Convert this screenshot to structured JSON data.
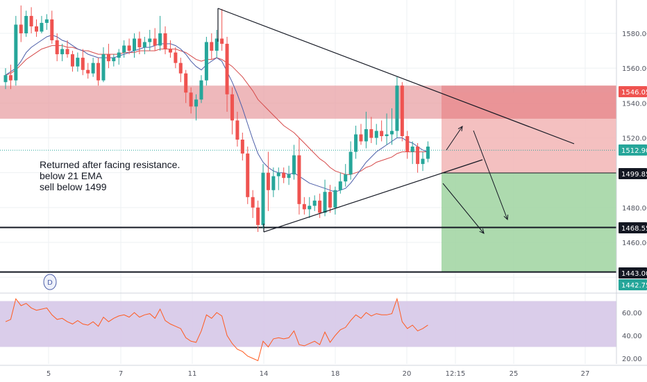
{
  "chart_data": [
    {
      "type": "candlestick",
      "ylim": [
        1440,
        1600
      ],
      "grid": true,
      "price_ticks": [
        "1580.00",
        "1560.00",
        "1540.00",
        "1520.00",
        "1480.00",
        "1460.00"
      ],
      "x_ticks": [
        "5",
        "7",
        "11",
        "14",
        "18",
        "20",
        "12:15",
        "25",
        "27"
      ],
      "price_tags": [
        {
          "label": "1546.05",
          "value": 1546.05,
          "color": "#ef5350"
        },
        {
          "label": "1512.90",
          "value": 1512.9,
          "color": "#26a69a"
        },
        {
          "label": "1499.85",
          "value": 1499.85,
          "color": "#131722"
        },
        {
          "label": "1468.55",
          "value": 1468.55,
          "color": "#131722"
        },
        {
          "label": "1443.00",
          "value": 1443.0,
          "color": "#131722"
        },
        {
          "label": "1442.75",
          "value": 1442.75,
          "color": "#26a69a"
        }
      ],
      "candles": [
        [
          1552,
          1560,
          1548,
          1556
        ],
        [
          1556,
          1562,
          1548,
          1553
        ],
        [
          1553,
          1590,
          1550,
          1585
        ],
        [
          1585,
          1596,
          1575,
          1580
        ],
        [
          1580,
          1593,
          1578,
          1590
        ],
        [
          1590,
          1595,
          1580,
          1584
        ],
        [
          1584,
          1588,
          1578,
          1581
        ],
        [
          1581,
          1590,
          1580,
          1586
        ],
        [
          1586,
          1591,
          1582,
          1588
        ],
        [
          1588,
          1593,
          1574,
          1576
        ],
        [
          1576,
          1580,
          1564,
          1568
        ],
        [
          1568,
          1574,
          1564,
          1571
        ],
        [
          1571,
          1576,
          1566,
          1568
        ],
        [
          1568,
          1570,
          1558,
          1561
        ],
        [
          1561,
          1569,
          1558,
          1566
        ],
        [
          1566,
          1571,
          1556,
          1559
        ],
        [
          1559,
          1563,
          1554,
          1557
        ],
        [
          1557,
          1566,
          1555,
          1563
        ],
        [
          1563,
          1566,
          1550,
          1553
        ],
        [
          1553,
          1572,
          1552,
          1568
        ],
        [
          1568,
          1574,
          1560,
          1564
        ],
        [
          1564,
          1568,
          1561,
          1566
        ],
        [
          1566,
          1571,
          1562,
          1569
        ],
        [
          1569,
          1576,
          1566,
          1573
        ],
        [
          1573,
          1577,
          1568,
          1570
        ],
        [
          1570,
          1580,
          1566,
          1577
        ],
        [
          1577,
          1581,
          1568,
          1572
        ],
        [
          1572,
          1578,
          1568,
          1575
        ],
        [
          1575,
          1582,
          1570,
          1577
        ],
        [
          1577,
          1583,
          1570,
          1573
        ],
        [
          1573,
          1590,
          1570,
          1580
        ],
        [
          1580,
          1584,
          1568,
          1571
        ],
        [
          1571,
          1576,
          1566,
          1569
        ],
        [
          1569,
          1572,
          1560,
          1563
        ],
        [
          1563,
          1566,
          1552,
          1557
        ],
        [
          1557,
          1559,
          1540,
          1546
        ],
        [
          1546,
          1549,
          1534,
          1538
        ],
        [
          1538,
          1545,
          1530,
          1542
        ],
        [
          1542,
          1556,
          1540,
          1553
        ],
        [
          1553,
          1578,
          1550,
          1575
        ],
        [
          1575,
          1580,
          1565,
          1570
        ],
        [
          1570,
          1582,
          1566,
          1577
        ],
        [
          1577,
          1594,
          1570,
          1574
        ],
        [
          1574,
          1578,
          1535,
          1545
        ],
        [
          1545,
          1549,
          1522,
          1530
        ],
        [
          1530,
          1535,
          1515,
          1519
        ],
        [
          1519,
          1523,
          1507,
          1511
        ],
        [
          1511,
          1515,
          1482,
          1486
        ],
        [
          1486,
          1490,
          1474,
          1480
        ],
        [
          1480,
          1484,
          1466,
          1470
        ],
        [
          1470,
          1505,
          1468,
          1500
        ],
        [
          1500,
          1512,
          1478,
          1490
        ],
        [
          1490,
          1503,
          1486,
          1498
        ],
        [
          1498,
          1503,
          1490,
          1500
        ],
        [
          1500,
          1503,
          1494,
          1497
        ],
        [
          1497,
          1504,
          1493,
          1499
        ],
        [
          1499,
          1516,
          1496,
          1510
        ],
        [
          1510,
          1520,
          1476,
          1482
        ],
        [
          1482,
          1486,
          1476,
          1479
        ],
        [
          1479,
          1486,
          1474,
          1481
        ],
        [
          1481,
          1487,
          1478,
          1484
        ],
        [
          1484,
          1488,
          1474,
          1477
        ],
        [
          1477,
          1496,
          1475,
          1489
        ],
        [
          1489,
          1493,
          1477,
          1480
        ],
        [
          1480,
          1492,
          1476,
          1490
        ],
        [
          1490,
          1500,
          1488,
          1495
        ],
        [
          1495,
          1505,
          1492,
          1499
        ],
        [
          1499,
          1518,
          1496,
          1512
        ],
        [
          1512,
          1527,
          1508,
          1522
        ],
        [
          1522,
          1528,
          1516,
          1518
        ],
        [
          1518,
          1535,
          1514,
          1525
        ],
        [
          1525,
          1532,
          1517,
          1520
        ],
        [
          1520,
          1528,
          1516,
          1524
        ],
        [
          1524,
          1530,
          1518,
          1521
        ],
        [
          1521,
          1534,
          1516,
          1522
        ],
        [
          1522,
          1537,
          1516,
          1524
        ],
        [
          1524,
          1555,
          1520,
          1550
        ],
        [
          1550,
          1552,
          1518,
          1521
        ],
        [
          1521,
          1524,
          1508,
          1512
        ],
        [
          1512,
          1518,
          1505,
          1515
        ],
        [
          1515,
          1517,
          1500,
          1505
        ],
        [
          1505,
          1512,
          1501,
          1508
        ],
        [
          1508,
          1518,
          1506,
          1515
        ]
      ],
      "ema_short": [
        1556,
        1558,
        1560,
        1564,
        1569,
        1572,
        1574,
        1576,
        1578,
        1579,
        1578,
        1576,
        1575,
        1573,
        1571,
        1570,
        1568,
        1567,
        1566,
        1566,
        1566,
        1566,
        1567,
        1568,
        1569,
        1570,
        1571,
        1572,
        1572,
        1573,
        1574,
        1574,
        1574,
        1573,
        1571,
        1568,
        1564,
        1561,
        1559,
        1562,
        1564,
        1566,
        1564,
        1558,
        1552,
        1545,
        1537,
        1528,
        1519,
        1511,
        1506,
        1503,
        1501,
        1500,
        1500,
        1499,
        1500,
        1498,
        1496,
        1494,
        1493,
        1492,
        1491,
        1490,
        1489,
        1490,
        1491,
        1494,
        1498,
        1502,
        1506,
        1509,
        1512,
        1514,
        1516,
        1518,
        1520,
        1520,
        1518,
        1517,
        1515,
        1513,
        1512
      ],
      "ema_long": [
        1556,
        1557,
        1559,
        1562,
        1565,
        1567,
        1569,
        1571,
        1572,
        1573,
        1573,
        1573,
        1572,
        1572,
        1571,
        1570,
        1570,
        1569,
        1568,
        1568,
        1568,
        1568,
        1568,
        1569,
        1569,
        1569,
        1570,
        1570,
        1570,
        1570,
        1571,
        1571,
        1571,
        1571,
        1570,
        1569,
        1567,
        1565,
        1564,
        1565,
        1565,
        1566,
        1565,
        1563,
        1561,
        1558,
        1555,
        1551,
        1547,
        1542,
        1539,
        1536,
        1533,
        1530,
        1527,
        1525,
        1523,
        1520,
        1517,
        1514,
        1511,
        1508,
        1506,
        1503,
        1501,
        1500,
        1499,
        1499,
        1500,
        1501,
        1503,
        1504,
        1506,
        1507,
        1508,
        1509,
        1511,
        1512,
        1512,
        1512,
        1512,
        1512,
        1512
      ],
      "rsi": [
        52,
        54,
        72,
        66,
        68,
        64,
        62,
        63,
        64,
        58,
        54,
        55,
        52,
        50,
        53,
        50,
        49,
        52,
        48,
        56,
        52,
        55,
        57,
        58,
        56,
        60,
        56,
        58,
        59,
        55,
        63,
        53,
        50,
        48,
        46,
        38,
        35,
        34,
        44,
        58,
        55,
        60,
        57,
        40,
        33,
        28,
        26,
        22,
        20,
        18,
        35,
        30,
        37,
        38,
        37,
        38,
        44,
        32,
        31,
        33,
        35,
        32,
        43,
        34,
        40,
        45,
        47,
        53,
        58,
        55,
        60,
        57,
        59,
        58,
        58,
        59,
        72,
        52,
        46,
        49,
        44,
        46,
        49
      ],
      "rsi_ticks": [
        "60.00",
        "40.00",
        "20.00"
      ],
      "rsi_band": [
        30,
        70
      ],
      "zones": {
        "resistance": [
          1531,
          1550
        ],
        "short_sell": [
          1499.85,
          1546.05
        ],
        "target": [
          1443.0,
          1499.85
        ]
      },
      "levels": [
        1468.55,
        1443.0
      ],
      "annotation": [
        "Returned after facing resistance.",
        "below 21 EMA",
        "sell below 1499"
      ],
      "interval_badge": "D",
      "colors": {
        "up": "#26a69a",
        "down": "#ef5350",
        "ema_short": "#4c5ea8",
        "ema_long": "#d64a4a",
        "rsi_line": "#ff5a1f",
        "rsi_band": "#d6c8e8",
        "resistance": "#e8a0a4",
        "short_zone": "#f2b5b5",
        "target_zone": "#9fd3a0",
        "trendline": "#131722"
      }
    }
  ]
}
